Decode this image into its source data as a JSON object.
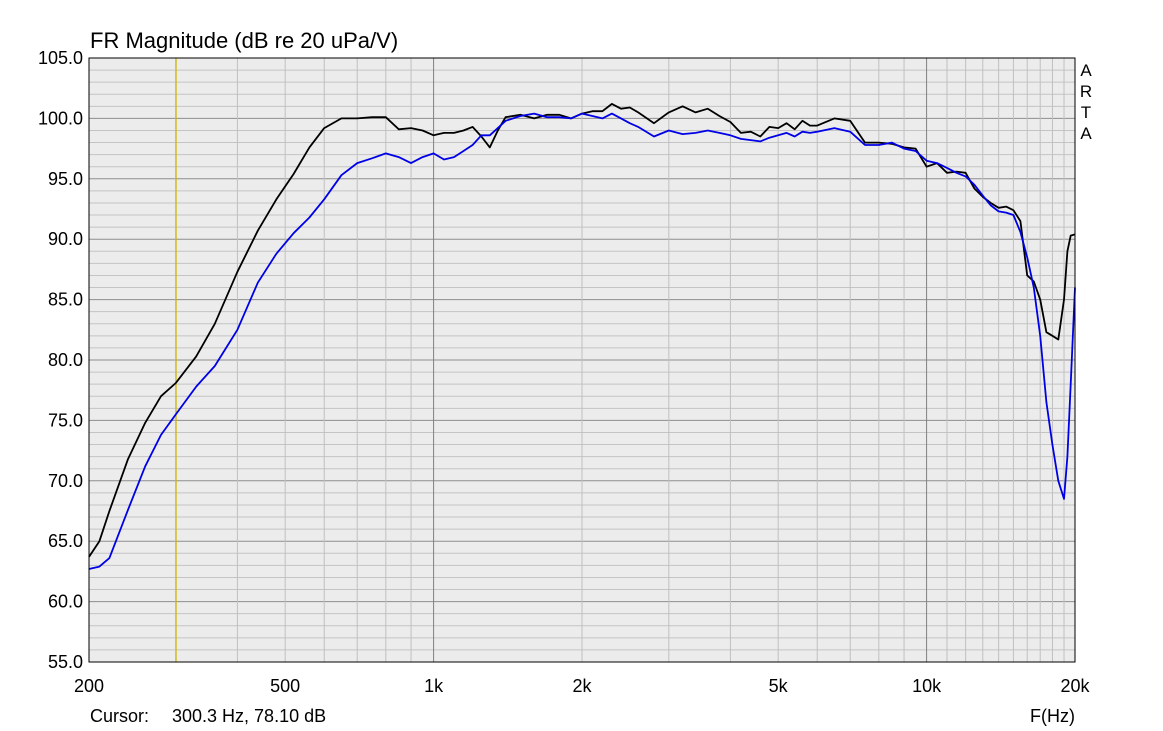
{
  "chart_data": {
    "type": "line",
    "title": "FR Magnitude (dB re 20 uPa/V)",
    "xlabel": "F(Hz)",
    "ylabel": "",
    "x_scale": "log",
    "xlim": [
      200,
      20000
    ],
    "ylim": [
      55,
      105
    ],
    "grid": true,
    "x_ticks": [
      {
        "value": 200,
        "label": "200"
      },
      {
        "value": 500,
        "label": "500"
      },
      {
        "value": 1000,
        "label": "1k"
      },
      {
        "value": 2000,
        "label": "2k"
      },
      {
        "value": 5000,
        "label": "5k"
      },
      {
        "value": 10000,
        "label": "10k"
      },
      {
        "value": 20000,
        "label": "20k"
      }
    ],
    "y_ticks": [
      {
        "value": 105,
        "label": "105.0"
      },
      {
        "value": 100,
        "label": "100.0"
      },
      {
        "value": 95,
        "label": "95.0"
      },
      {
        "value": 90,
        "label": "90.0"
      },
      {
        "value": 85,
        "label": "85.0"
      },
      {
        "value": 80,
        "label": "80.0"
      },
      {
        "value": 75,
        "label": "75.0"
      },
      {
        "value": 70,
        "label": "70.0"
      },
      {
        "value": 65,
        "label": "65.0"
      },
      {
        "value": 60,
        "label": "60.0"
      },
      {
        "value": 55,
        "label": "55.0"
      }
    ],
    "watermark": "ARTA",
    "cursor": {
      "label": "Cursor:",
      "text": "300.3 Hz, 78.10 dB",
      "frequency": 300.3,
      "value": 78.1
    },
    "series": [
      {
        "color": "#000000",
        "x": [
          200,
          210,
          220,
          240,
          260,
          280,
          300,
          330,
          360,
          400,
          440,
          480,
          520,
          560,
          600,
          650,
          700,
          750,
          800,
          850,
          900,
          950,
          1000,
          1050,
          1100,
          1150,
          1200,
          1250,
          1300,
          1350,
          1400,
          1500,
          1600,
          1700,
          1800,
          1900,
          2000,
          2100,
          2200,
          2300,
          2400,
          2500,
          2600,
          2800,
          3000,
          3200,
          3400,
          3600,
          3800,
          4000,
          4200,
          4400,
          4600,
          4800,
          5000,
          5200,
          5400,
          5600,
          5800,
          6000,
          6500,
          7000,
          7500,
          8000,
          8500,
          9000,
          9500,
          10000,
          10500,
          11000,
          11500,
          12000,
          12500,
          13000,
          13500,
          14000,
          14500,
          15000,
          15500,
          16000,
          16500,
          17000,
          17500,
          18000,
          18500,
          19000,
          19300,
          19600,
          20000
        ],
        "y": [
          63.7,
          65.0,
          67.5,
          71.8,
          74.8,
          77.0,
          78.1,
          80.3,
          83.0,
          87.3,
          90.7,
          93.3,
          95.4,
          97.6,
          99.2,
          100.0,
          100.0,
          100.1,
          100.1,
          99.1,
          99.2,
          99.0,
          98.6,
          98.8,
          98.8,
          99.0,
          99.3,
          98.5,
          97.6,
          99.0,
          100.1,
          100.3,
          100.0,
          100.3,
          100.3,
          100.0,
          100.4,
          100.6,
          100.6,
          101.2,
          100.8,
          100.9,
          100.5,
          99.6,
          100.5,
          101.0,
          100.5,
          100.8,
          100.2,
          99.7,
          98.8,
          98.9,
          98.5,
          99.3,
          99.2,
          99.6,
          99.1,
          99.8,
          99.4,
          99.4,
          100.0,
          99.8,
          98.0,
          98.0,
          97.9,
          97.6,
          97.5,
          96.0,
          96.3,
          95.5,
          95.6,
          95.5,
          94.2,
          93.5,
          93.0,
          92.6,
          92.7,
          92.4,
          91.5,
          87.0,
          86.5,
          85.0,
          82.3,
          82.0,
          81.7,
          85.0,
          89.0,
          90.3,
          90.4
        ]
      },
      {
        "color": "#0000e6",
        "x": [
          200,
          210,
          220,
          240,
          260,
          280,
          300,
          330,
          360,
          400,
          440,
          480,
          520,
          560,
          600,
          650,
          700,
          750,
          800,
          850,
          900,
          950,
          1000,
          1050,
          1100,
          1150,
          1200,
          1250,
          1300,
          1350,
          1400,
          1500,
          1600,
          1700,
          1800,
          1900,
          2000,
          2100,
          2200,
          2300,
          2400,
          2500,
          2600,
          2800,
          3000,
          3200,
          3400,
          3600,
          3800,
          4000,
          4200,
          4400,
          4600,
          4800,
          5000,
          5200,
          5400,
          5600,
          5800,
          6000,
          6500,
          7000,
          7500,
          8000,
          8500,
          9000,
          9500,
          10000,
          10500,
          11000,
          11500,
          12000,
          12500,
          13000,
          13500,
          14000,
          14500,
          15000,
          15500,
          16000,
          16500,
          17000,
          17500,
          18000,
          18500,
          19000,
          19300,
          19600,
          20000
        ],
        "y": [
          62.7,
          62.9,
          63.6,
          67.6,
          71.2,
          73.8,
          75.5,
          77.8,
          79.5,
          82.5,
          86.4,
          88.8,
          90.5,
          91.8,
          93.3,
          95.3,
          96.3,
          96.7,
          97.1,
          96.8,
          96.3,
          96.8,
          97.1,
          96.6,
          96.8,
          97.3,
          97.8,
          98.6,
          98.6,
          99.2,
          99.8,
          100.2,
          100.4,
          100.1,
          100.1,
          100.0,
          100.4,
          100.2,
          100.0,
          100.4,
          100.0,
          99.6,
          99.3,
          98.5,
          99.0,
          98.7,
          98.8,
          99.0,
          98.8,
          98.6,
          98.3,
          98.2,
          98.1,
          98.4,
          98.6,
          98.8,
          98.5,
          98.9,
          98.8,
          98.9,
          99.2,
          98.9,
          97.8,
          97.8,
          98.0,
          97.5,
          97.3,
          96.5,
          96.3,
          95.9,
          95.5,
          95.2,
          94.5,
          93.6,
          92.8,
          92.3,
          92.2,
          92.0,
          90.6,
          88.5,
          86.0,
          82.0,
          76.5,
          73.0,
          70.0,
          68.5,
          72.0,
          78.0,
          86.0
        ]
      }
    ]
  }
}
